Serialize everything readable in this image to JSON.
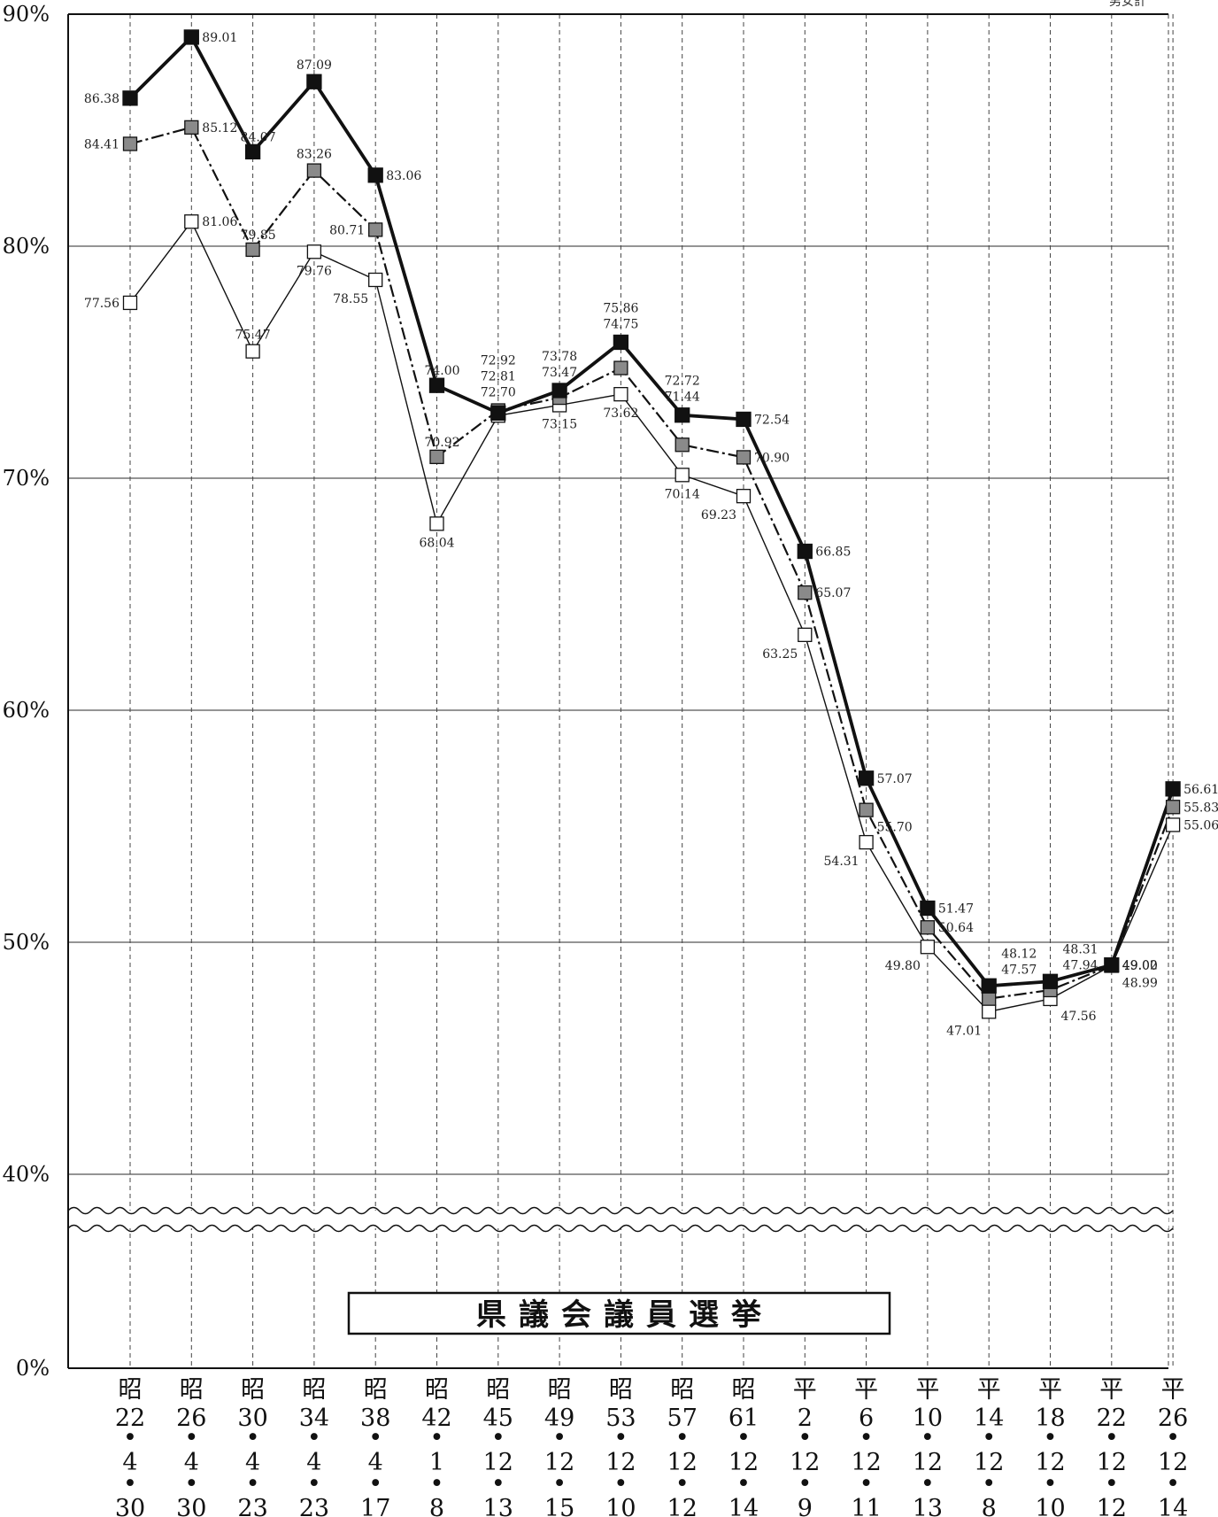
{
  "chart_data": {
    "type": "line",
    "title": "県議会議員選挙",
    "note": "男女計",
    "ylim": [
      0,
      90
    ],
    "y_axis_break": [
      0,
      40
    ],
    "y_ticks": [
      {
        "value": 90,
        "label": "90%"
      },
      {
        "value": 80,
        "label": "80%"
      },
      {
        "value": 70,
        "label": "70%"
      },
      {
        "value": 60,
        "label": "60%"
      },
      {
        "value": 50,
        "label": "50%"
      },
      {
        "value": 40,
        "label": "40%"
      },
      {
        "value": 0,
        "label": "0%"
      }
    ],
    "grid": true,
    "categories": [
      {
        "era": "昭",
        "year": "22",
        "month": "4",
        "day": "30"
      },
      {
        "era": "昭",
        "year": "26",
        "month": "4",
        "day": "30"
      },
      {
        "era": "昭",
        "year": "30",
        "month": "4",
        "day": "23"
      },
      {
        "era": "昭",
        "year": "34",
        "month": "4",
        "day": "23"
      },
      {
        "era": "昭",
        "year": "38",
        "month": "4",
        "day": "17"
      },
      {
        "era": "昭",
        "year": "42",
        "month": "1",
        "day": "8"
      },
      {
        "era": "昭",
        "year": "45",
        "month": "12",
        "day": "13"
      },
      {
        "era": "昭",
        "year": "49",
        "month": "12",
        "day": "15"
      },
      {
        "era": "昭",
        "year": "53",
        "month": "12",
        "day": "10"
      },
      {
        "era": "昭",
        "year": "57",
        "month": "12",
        "day": "12"
      },
      {
        "era": "昭",
        "year": "61",
        "month": "12",
        "day": "14"
      },
      {
        "era": "平",
        "year": "2",
        "month": "12",
        "day": "9"
      },
      {
        "era": "平",
        "year": "6",
        "month": "12",
        "day": "11"
      },
      {
        "era": "平",
        "year": "10",
        "month": "12",
        "day": "13"
      },
      {
        "era": "平",
        "year": "14",
        "month": "12",
        "day": "8"
      },
      {
        "era": "平",
        "year": "18",
        "month": "12",
        "day": "10"
      },
      {
        "era": "平",
        "year": "22",
        "month": "12",
        "day": "12"
      },
      {
        "era": "平",
        "year": "26",
        "month": "12",
        "day": "14"
      }
    ],
    "date_separator": "•",
    "series": [
      {
        "key": "black",
        "marker_color": "#111111",
        "line_style": "solid-thick",
        "values": [
          86.38,
          89.01,
          84.07,
          87.09,
          83.06,
          74.0,
          72.81,
          73.78,
          75.86,
          72.72,
          72.54,
          66.85,
          57.07,
          51.47,
          48.12,
          48.31,
          49.02,
          56.61
        ]
      },
      {
        "key": "gray",
        "marker_color": "#8a8a8a",
        "line_style": "dash-dot",
        "values": [
          84.41,
          85.12,
          79.85,
          83.26,
          80.71,
          70.92,
          72.92,
          73.47,
          74.75,
          71.44,
          70.9,
          65.07,
          55.7,
          50.64,
          47.57,
          47.94,
          49.0,
          55.83
        ]
      },
      {
        "key": "white",
        "marker_color": "#ffffff",
        "line_style": "solid-thin",
        "values": [
          77.56,
          81.06,
          75.47,
          79.76,
          78.55,
          68.04,
          72.7,
          73.15,
          73.62,
          70.14,
          69.23,
          63.25,
          54.31,
          49.8,
          47.01,
          47.56,
          48.99,
          55.06
        ]
      }
    ],
    "data_labels": [
      {
        "text": "86.38",
        "x": 0,
        "y": 86.38,
        "pos": "l"
      },
      {
        "text": "89.01",
        "x": 1,
        "y": 89.01,
        "pos": "r"
      },
      {
        "text": "84.07",
        "x": 2,
        "y": 84.07,
        "pos": "ur"
      },
      {
        "text": "87.09",
        "x": 3,
        "y": 87.09,
        "pos": "t"
      },
      {
        "text": "83.06",
        "x": 4,
        "y": 83.06,
        "pos": "r"
      },
      {
        "text": "74.00",
        "x": 5,
        "y": 74.0,
        "pos": "ur"
      },
      {
        "text": "72.92",
        "x": 6,
        "y": 72.92,
        "pos": "t3"
      },
      {
        "text": "72.81",
        "x": 6,
        "y": 72.92,
        "pos": "t2"
      },
      {
        "text": "72.70",
        "x": 6,
        "y": 72.92,
        "pos": "t1"
      },
      {
        "text": "73.78",
        "x": 7,
        "y": 73.78,
        "pos": "t2"
      },
      {
        "text": "73.47",
        "x": 7,
        "y": 73.78,
        "pos": "t1"
      },
      {
        "text": "75.86",
        "x": 8,
        "y": 75.86,
        "pos": "t2"
      },
      {
        "text": "74.75",
        "x": 8,
        "y": 75.86,
        "pos": "t1"
      },
      {
        "text": "72.72",
        "x": 9,
        "y": 72.72,
        "pos": "t2"
      },
      {
        "text": "71.44",
        "x": 9,
        "y": 72.72,
        "pos": "t1"
      },
      {
        "text": "72.54",
        "x": 10,
        "y": 72.54,
        "pos": "r"
      },
      {
        "text": "66.85",
        "x": 11,
        "y": 66.85,
        "pos": "r"
      },
      {
        "text": "57.07",
        "x": 12,
        "y": 57.07,
        "pos": "r"
      },
      {
        "text": "55.70",
        "x": 12,
        "y": 55.7,
        "pos": "r2"
      },
      {
        "text": "51.47",
        "x": 13,
        "y": 51.47,
        "pos": "r"
      },
      {
        "text": "48.12",
        "x": 14,
        "y": 48.12,
        "pos": "ur2"
      },
      {
        "text": "47.57",
        "x": 14,
        "y": 48.12,
        "pos": "ur1"
      },
      {
        "text": "48.31",
        "x": 15,
        "y": 48.31,
        "pos": "ur2"
      },
      {
        "text": "47.94",
        "x": 15,
        "y": 48.31,
        "pos": "ur1"
      },
      {
        "text": "49.02",
        "x": 16,
        "y": 49.02,
        "pos": "r"
      },
      {
        "text": "56.61",
        "x": 17,
        "y": 56.61,
        "pos": "r"
      },
      {
        "text": "84.41",
        "x": 0,
        "y": 84.41,
        "pos": "l"
      },
      {
        "text": "85.12",
        "x": 1,
        "y": 85.12,
        "pos": "r"
      },
      {
        "text": "79.85",
        "x": 2,
        "y": 79.85,
        "pos": "ur"
      },
      {
        "text": "83.26",
        "x": 3,
        "y": 83.26,
        "pos": "t"
      },
      {
        "text": "80.71",
        "x": 4,
        "y": 80.71,
        "pos": "l"
      },
      {
        "text": "70.92",
        "x": 5,
        "y": 70.92,
        "pos": "ur"
      },
      {
        "text": "70.90",
        "x": 10,
        "y": 70.9,
        "pos": "r"
      },
      {
        "text": "65.07",
        "x": 11,
        "y": 65.07,
        "pos": "r"
      },
      {
        "text": "50.64",
        "x": 13,
        "y": 50.64,
        "pos": "r"
      },
      {
        "text": "49.00",
        "x": 16,
        "y": 49.0,
        "pos": "r"
      },
      {
        "text": "55.83",
        "x": 17,
        "y": 55.83,
        "pos": "r"
      },
      {
        "text": "77.56",
        "x": 0,
        "y": 77.56,
        "pos": "l"
      },
      {
        "text": "81.06",
        "x": 1,
        "y": 81.06,
        "pos": "r"
      },
      {
        "text": "75.47",
        "x": 2,
        "y": 75.47,
        "pos": "t"
      },
      {
        "text": "79.76",
        "x": 3,
        "y": 79.76,
        "pos": "b"
      },
      {
        "text": "78.55",
        "x": 4,
        "y": 78.55,
        "pos": "bl"
      },
      {
        "text": "68.04",
        "x": 5,
        "y": 68.04,
        "pos": "b"
      },
      {
        "text": "73.15",
        "x": 7,
        "y": 73.15,
        "pos": "b"
      },
      {
        "text": "73.62",
        "x": 8,
        "y": 73.62,
        "pos": "b"
      },
      {
        "text": "70.14",
        "x": 9,
        "y": 70.14,
        "pos": "b"
      },
      {
        "text": "69.23",
        "x": 10,
        "y": 69.23,
        "pos": "bl"
      },
      {
        "text": "63.25",
        "x": 11,
        "y": 63.25,
        "pos": "bl"
      },
      {
        "text": "54.31",
        "x": 12,
        "y": 54.31,
        "pos": "bl"
      },
      {
        "text": "49.80",
        "x": 13,
        "y": 49.8,
        "pos": "bl"
      },
      {
        "text": "47.01",
        "x": 14,
        "y": 47.01,
        "pos": "bl"
      },
      {
        "text": "47.56",
        "x": 15,
        "y": 47.56,
        "pos": "br"
      },
      {
        "text": "48.99",
        "x": 16,
        "y": 48.99,
        "pos": "br"
      },
      {
        "text": "55.06",
        "x": 17,
        "y": 55.06,
        "pos": "r"
      }
    ]
  }
}
